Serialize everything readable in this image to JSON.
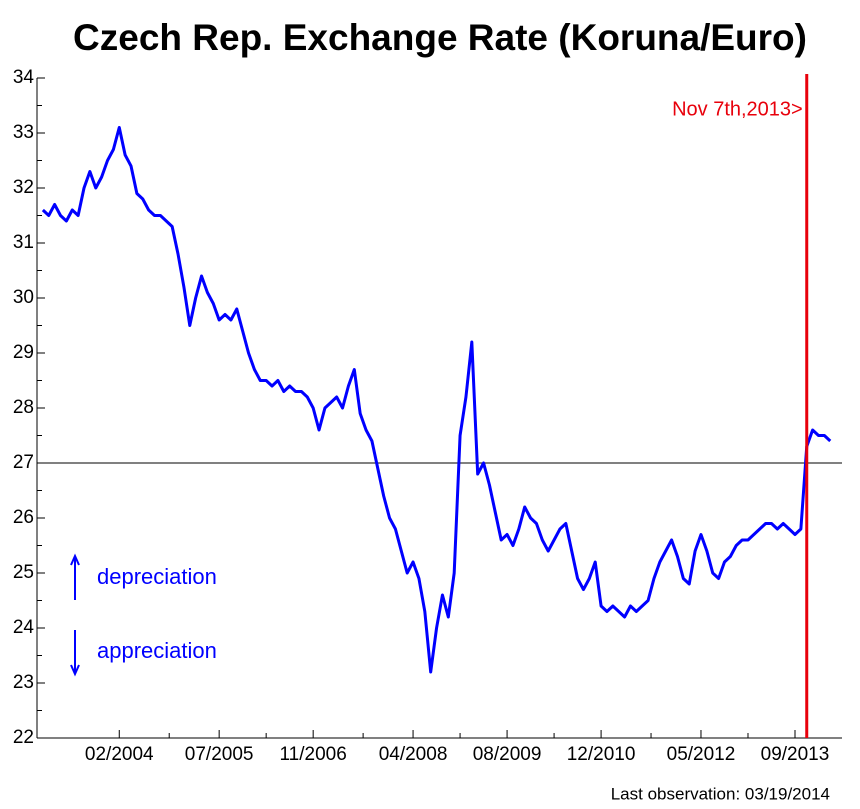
{
  "chart_data": {
    "type": "line",
    "title": "Czech Rep. Exchange Rate (Koruna/Euro)",
    "footnote": "Last observation: 03/19/2014",
    "x": [
      "01/2003",
      "02/2003",
      "03/2003",
      "04/2003",
      "05/2003",
      "06/2003",
      "07/2003",
      "08/2003",
      "09/2003",
      "10/2003",
      "11/2003",
      "12/2003",
      "01/2004",
      "02/2004",
      "03/2004",
      "04/2004",
      "05/2004",
      "06/2004",
      "07/2004",
      "08/2004",
      "09/2004",
      "10/2004",
      "11/2004",
      "12/2004",
      "01/2005",
      "02/2005",
      "03/2005",
      "04/2005",
      "05/2005",
      "06/2005",
      "07/2005",
      "08/2005",
      "09/2005",
      "10/2005",
      "11/2005",
      "12/2005",
      "01/2006",
      "02/2006",
      "03/2006",
      "04/2006",
      "05/2006",
      "06/2006",
      "07/2006",
      "08/2006",
      "09/2006",
      "10/2006",
      "11/2006",
      "12/2006",
      "01/2007",
      "02/2007",
      "03/2007",
      "04/2007",
      "05/2007",
      "06/2007",
      "07/2007",
      "08/2007",
      "09/2007",
      "10/2007",
      "11/2007",
      "12/2007",
      "01/2008",
      "02/2008",
      "03/2008",
      "04/2008",
      "05/2008",
      "06/2008",
      "07/2008",
      "08/2008",
      "09/2008",
      "10/2008",
      "11/2008",
      "12/2008",
      "01/2009",
      "02/2009",
      "03/2009",
      "04/2009",
      "05/2009",
      "06/2009",
      "07/2009",
      "08/2009",
      "09/2009",
      "10/2009",
      "11/2009",
      "12/2009",
      "01/2010",
      "02/2010",
      "03/2010",
      "04/2010",
      "05/2010",
      "06/2010",
      "07/2010",
      "08/2010",
      "09/2010",
      "10/2010",
      "11/2010",
      "12/2010",
      "01/2011",
      "02/2011",
      "03/2011",
      "04/2011",
      "05/2011",
      "06/2011",
      "07/2011",
      "08/2011",
      "09/2011",
      "10/2011",
      "11/2011",
      "12/2011",
      "01/2012",
      "02/2012",
      "03/2012",
      "04/2012",
      "05/2012",
      "06/2012",
      "07/2012",
      "08/2012",
      "09/2012",
      "10/2012",
      "11/2012",
      "12/2012",
      "01/2013",
      "02/2013",
      "03/2013",
      "04/2013",
      "05/2013",
      "06/2013",
      "07/2013",
      "08/2013",
      "09/2013",
      "10/2013",
      "11/2013",
      "12/2013",
      "01/2014",
      "02/2014",
      "03/2014"
    ],
    "series": [
      {
        "name": "Koruna/Euro",
        "color": "#0000ff",
        "values": [
          31.6,
          31.5,
          31.7,
          31.5,
          31.4,
          31.6,
          31.5,
          32.0,
          32.3,
          32.0,
          32.2,
          32.5,
          32.7,
          33.1,
          32.6,
          32.4,
          31.9,
          31.8,
          31.6,
          31.5,
          31.5,
          31.4,
          31.3,
          30.8,
          30.2,
          29.5,
          30.0,
          30.4,
          30.1,
          29.9,
          29.6,
          29.7,
          29.6,
          29.8,
          29.4,
          29.0,
          28.7,
          28.5,
          28.5,
          28.4,
          28.5,
          28.3,
          28.4,
          28.3,
          28.3,
          28.2,
          28.0,
          27.6,
          28.0,
          28.1,
          28.2,
          28.0,
          28.4,
          28.7,
          27.9,
          27.6,
          27.4,
          26.9,
          26.4,
          26.0,
          25.8,
          25.4,
          25.0,
          25.2,
          24.9,
          24.3,
          23.2,
          24.0,
          24.6,
          24.2,
          25.0,
          27.5,
          28.2,
          29.2,
          26.8,
          27.0,
          26.6,
          26.1,
          25.6,
          25.7,
          25.5,
          25.8,
          26.2,
          26.0,
          25.9,
          25.6,
          25.4,
          25.6,
          25.8,
          25.9,
          25.4,
          24.9,
          24.7,
          24.9,
          25.2,
          24.4,
          24.3,
          24.4,
          24.3,
          24.2,
          24.4,
          24.3,
          24.4,
          24.5,
          24.9,
          25.2,
          25.4,
          25.6,
          25.3,
          24.9,
          24.8,
          25.4,
          25.7,
          25.4,
          25.0,
          24.9,
          25.2,
          25.3,
          25.5,
          25.6,
          25.6,
          25.7,
          25.8,
          25.9,
          25.9,
          25.8,
          25.9,
          25.8,
          25.7,
          25.8,
          27.3,
          27.6,
          27.5,
          27.5,
          27.4
        ]
      }
    ],
    "xlim": [
      "12/2002",
      "05/2014"
    ],
    "xticks": [
      "02/2004",
      "07/2005",
      "11/2006",
      "04/2008",
      "08/2009",
      "12/2010",
      "05/2012",
      "09/2013"
    ],
    "ylim": [
      22,
      34
    ],
    "yticks": [
      22,
      23,
      24,
      25,
      26,
      27,
      28,
      29,
      30,
      31,
      32,
      33,
      34
    ],
    "reference_line": {
      "value": 27,
      "color": "#000000"
    },
    "event_line": {
      "x": "11/2013",
      "text": "Nov 7th,2013>",
      "color": "#e8000b"
    },
    "annotations": [
      {
        "text": "depreciation",
        "direction": "up",
        "color": "#0000ff"
      },
      {
        "text": "appreciation",
        "direction": "down",
        "color": "#0000ff"
      }
    ]
  }
}
